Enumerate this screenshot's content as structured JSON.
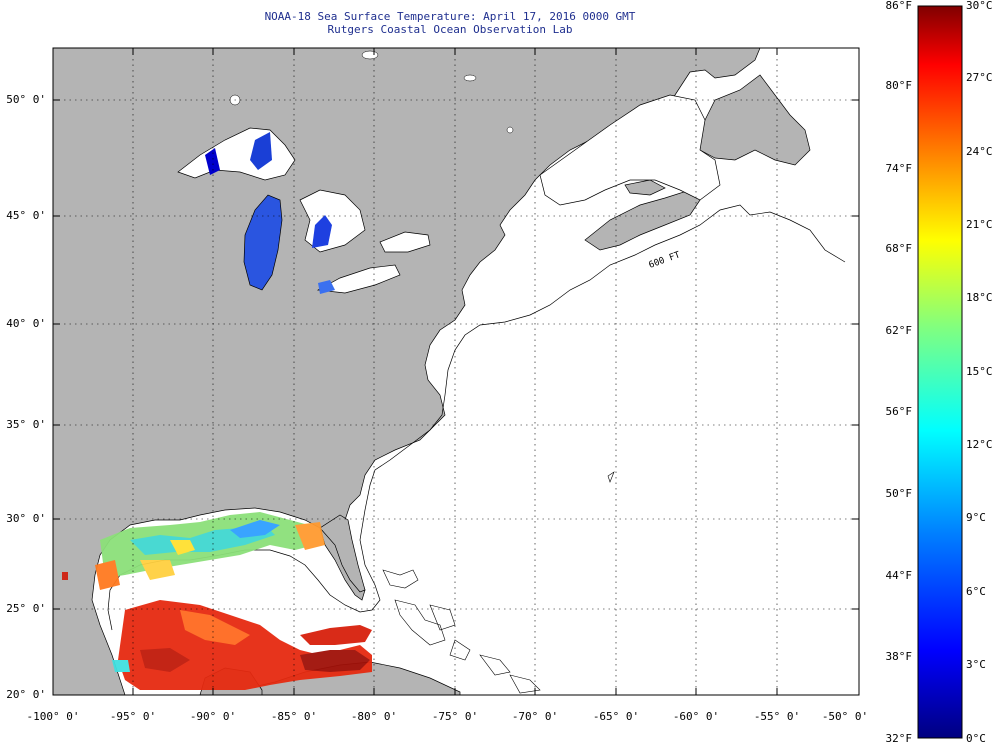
{
  "title": {
    "line1": "NOAA-18 Sea Surface Temperature:  April 17, 2016 0000 GMT",
    "line2": "Rutgers Coastal Ocean Observation Lab"
  },
  "map": {
    "lat_labels": [
      "50° 0'",
      "45° 0'",
      "40° 0'",
      "35° 0'",
      "30° 0'",
      "25° 0'",
      "20° 0'"
    ],
    "lon_labels": [
      "-100° 0'",
      "-95° 0'",
      "-90° 0'",
      "-85° 0'",
      "-80° 0'",
      "-75° 0'",
      "-70° 0'",
      "-65° 0'",
      "-60° 0'",
      "-55° 0'",
      "-50° 0'"
    ],
    "isobath_label": "600 FT",
    "colors": {
      "land": "#b4b4b4",
      "ocean_nodata": "#ffffff",
      "title": "#1f2f8f"
    }
  },
  "colorbar": {
    "fahrenheit": [
      "86°F",
      "80°F",
      "74°F",
      "68°F",
      "62°F",
      "56°F",
      "50°F",
      "44°F",
      "38°F",
      "32°F"
    ],
    "celsius": [
      "30°C",
      "27°C",
      "24°C",
      "21°C",
      "18°C",
      "15°C",
      "12°C",
      "9°C",
      "6°C",
      "3°C",
      "0°C"
    ],
    "stops": [
      "#000080",
      "#0000ff",
      "#0080ff",
      "#00ffff",
      "#80ff80",
      "#ffff00",
      "#ff8000",
      "#ff0000",
      "#800000"
    ]
  }
}
